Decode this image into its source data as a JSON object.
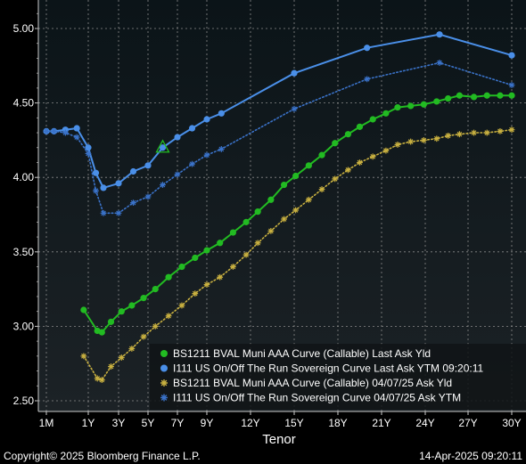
{
  "chart_data": {
    "type": "line",
    "xlabel": "Tenor",
    "ylim": [
      2.45,
      5.15
    ],
    "y_ticks": [
      "2.50",
      "3.00",
      "3.50",
      "4.00",
      "4.50",
      "5.00"
    ],
    "x_ticks": [
      {
        "label": "1M",
        "t": 0.083
      },
      {
        "label": "1Y",
        "t": 1
      },
      {
        "label": "3Y",
        "t": 3
      },
      {
        "label": "5Y",
        "t": 5
      },
      {
        "label": "7Y",
        "t": 7
      },
      {
        "label": "9Y",
        "t": 9
      },
      {
        "label": "12Y",
        "t": 12
      },
      {
        "label": "15Y",
        "t": 15
      },
      {
        "label": "18Y",
        "t": 18
      },
      {
        "label": "21Y",
        "t": 21
      },
      {
        "label": "24Y",
        "t": 24
      },
      {
        "label": "27Y",
        "t": 27
      },
      {
        "label": "30Y",
        "t": 30
      }
    ],
    "grid": true,
    "legend_position": "bottom-right",
    "series": [
      {
        "name": "BS1211 BVAL Muni AAA Curve (Callable) Last Ask Yld",
        "color": "#22bb22",
        "style": "solid-dot",
        "x": [
          0.9,
          1.6,
          1.9,
          2.5,
          3.2,
          3.9,
          4.7,
          5.5,
          6.4,
          7.3,
          8.2,
          9.0,
          9.9,
          10.8,
          11.7,
          12.5,
          13.4,
          14.3,
          15.1,
          16.0,
          16.9,
          17.8,
          18.7,
          19.5,
          20.4,
          21.3,
          22.1,
          23.0,
          23.9,
          24.8,
          25.6,
          26.4,
          27.4,
          28.3,
          29.2,
          30.0
        ],
        "y": [
          3.11,
          2.97,
          2.96,
          3.03,
          3.1,
          3.14,
          3.19,
          3.25,
          3.33,
          3.4,
          3.46,
          3.51,
          3.56,
          3.63,
          3.7,
          3.77,
          3.85,
          3.95,
          4.01,
          4.08,
          4.15,
          4.23,
          4.29,
          4.34,
          4.39,
          4.43,
          4.47,
          4.48,
          4.49,
          4.51,
          4.53,
          4.55,
          4.54,
          4.55,
          4.55,
          4.55
        ]
      },
      {
        "name": "I111 US On/Off The Run Sovereign Curve Last Ask YTM 09:20:11",
        "color": "#4a8fe8",
        "style": "solid-dot",
        "x": [
          0.083,
          0.25,
          0.5,
          0.75,
          1.0,
          1.5,
          2.0,
          3.0,
          4.0,
          5.0,
          6.0,
          7.0,
          8.0,
          9.0,
          10.0,
          15.0,
          20.0,
          25.0,
          30.0
        ],
        "y": [
          4.31,
          4.31,
          4.32,
          4.33,
          4.2,
          4.03,
          3.93,
          3.96,
          4.04,
          4.08,
          4.2,
          4.27,
          4.33,
          4.39,
          4.43,
          4.7,
          4.87,
          4.96,
          4.82
        ]
      },
      {
        "name": "BS1211 BVAL Muni AAA Curve (Callable) 04/07/25 Ask Yld",
        "color": "#c8b040",
        "style": "dotted-star",
        "x": [
          0.9,
          1.6,
          1.9,
          2.5,
          3.2,
          3.9,
          4.7,
          5.5,
          6.4,
          7.3,
          8.2,
          9.0,
          9.9,
          10.8,
          11.7,
          12.5,
          13.4,
          14.3,
          15.1,
          16.0,
          16.9,
          17.8,
          18.7,
          19.5,
          20.4,
          21.3,
          22.1,
          23.0,
          23.9,
          24.8,
          25.6,
          26.4,
          27.4,
          28.3,
          29.2,
          30.0
        ],
        "y": [
          2.8,
          2.65,
          2.64,
          2.73,
          2.79,
          2.85,
          2.93,
          3.0,
          3.07,
          3.14,
          3.22,
          3.28,
          3.33,
          3.4,
          3.48,
          3.56,
          3.64,
          3.72,
          3.78,
          3.85,
          3.92,
          3.99,
          4.05,
          4.1,
          4.14,
          4.18,
          4.22,
          4.24,
          4.25,
          4.26,
          4.28,
          4.29,
          4.3,
          4.3,
          4.31,
          4.32
        ]
      },
      {
        "name": "I111 US On/Off The Run Sovereign Curve 04/07/25 Ask YTM",
        "color": "#3a72c8",
        "style": "dotted-star",
        "x": [
          0.083,
          0.25,
          0.5,
          0.75,
          1.0,
          1.5,
          2.0,
          3.0,
          4.0,
          5.0,
          6.0,
          7.0,
          8.0,
          9.0,
          10.0,
          15.0,
          20.0,
          25.0,
          30.0
        ],
        "y": [
          4.31,
          4.31,
          4.3,
          4.27,
          4.16,
          3.91,
          3.76,
          3.76,
          3.83,
          3.87,
          3.95,
          4.02,
          4.09,
          4.15,
          4.19,
          4.46,
          4.66,
          4.77,
          4.62
        ]
      }
    ],
    "annotation_marker": {
      "x": 6.0,
      "y": 4.2,
      "shape": "triangle",
      "color": "#22bb22"
    }
  },
  "footer": {
    "copyright": "Copyright© 2025 Bloomberg Finance L.P.",
    "timestamp": "14-Apr-2025 09:20:11"
  }
}
